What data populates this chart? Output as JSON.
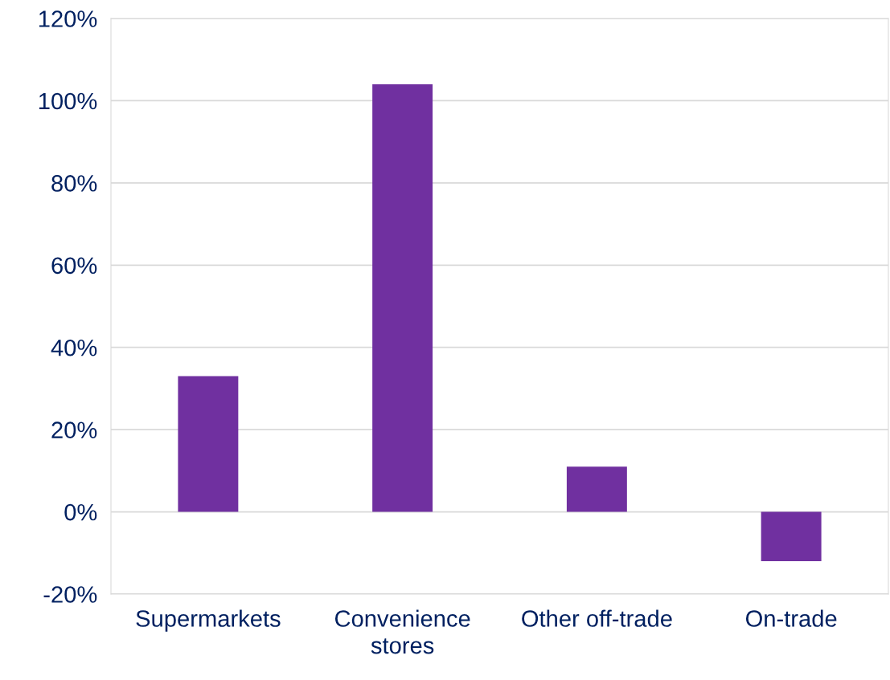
{
  "chart_data": {
    "type": "bar",
    "categories": [
      "Supermarkets",
      "Convenience\nstores",
      "Other off-trade",
      "On-trade"
    ],
    "values": [
      33,
      104,
      11,
      -12
    ],
    "color": "#7030a0",
    "ylim": [
      -20,
      120
    ],
    "yticks": [
      {
        "value": -20,
        "label": "-20%"
      },
      {
        "value": 0,
        "label": "0%"
      },
      {
        "value": 20,
        "label": "20%"
      },
      {
        "value": 40,
        "label": "40%"
      },
      {
        "value": 60,
        "label": "60%"
      },
      {
        "value": 80,
        "label": "80%"
      },
      {
        "value": 100,
        "label": "100%"
      },
      {
        "value": 120,
        "label": "120%"
      }
    ],
    "grid": "y",
    "legend": false
  }
}
